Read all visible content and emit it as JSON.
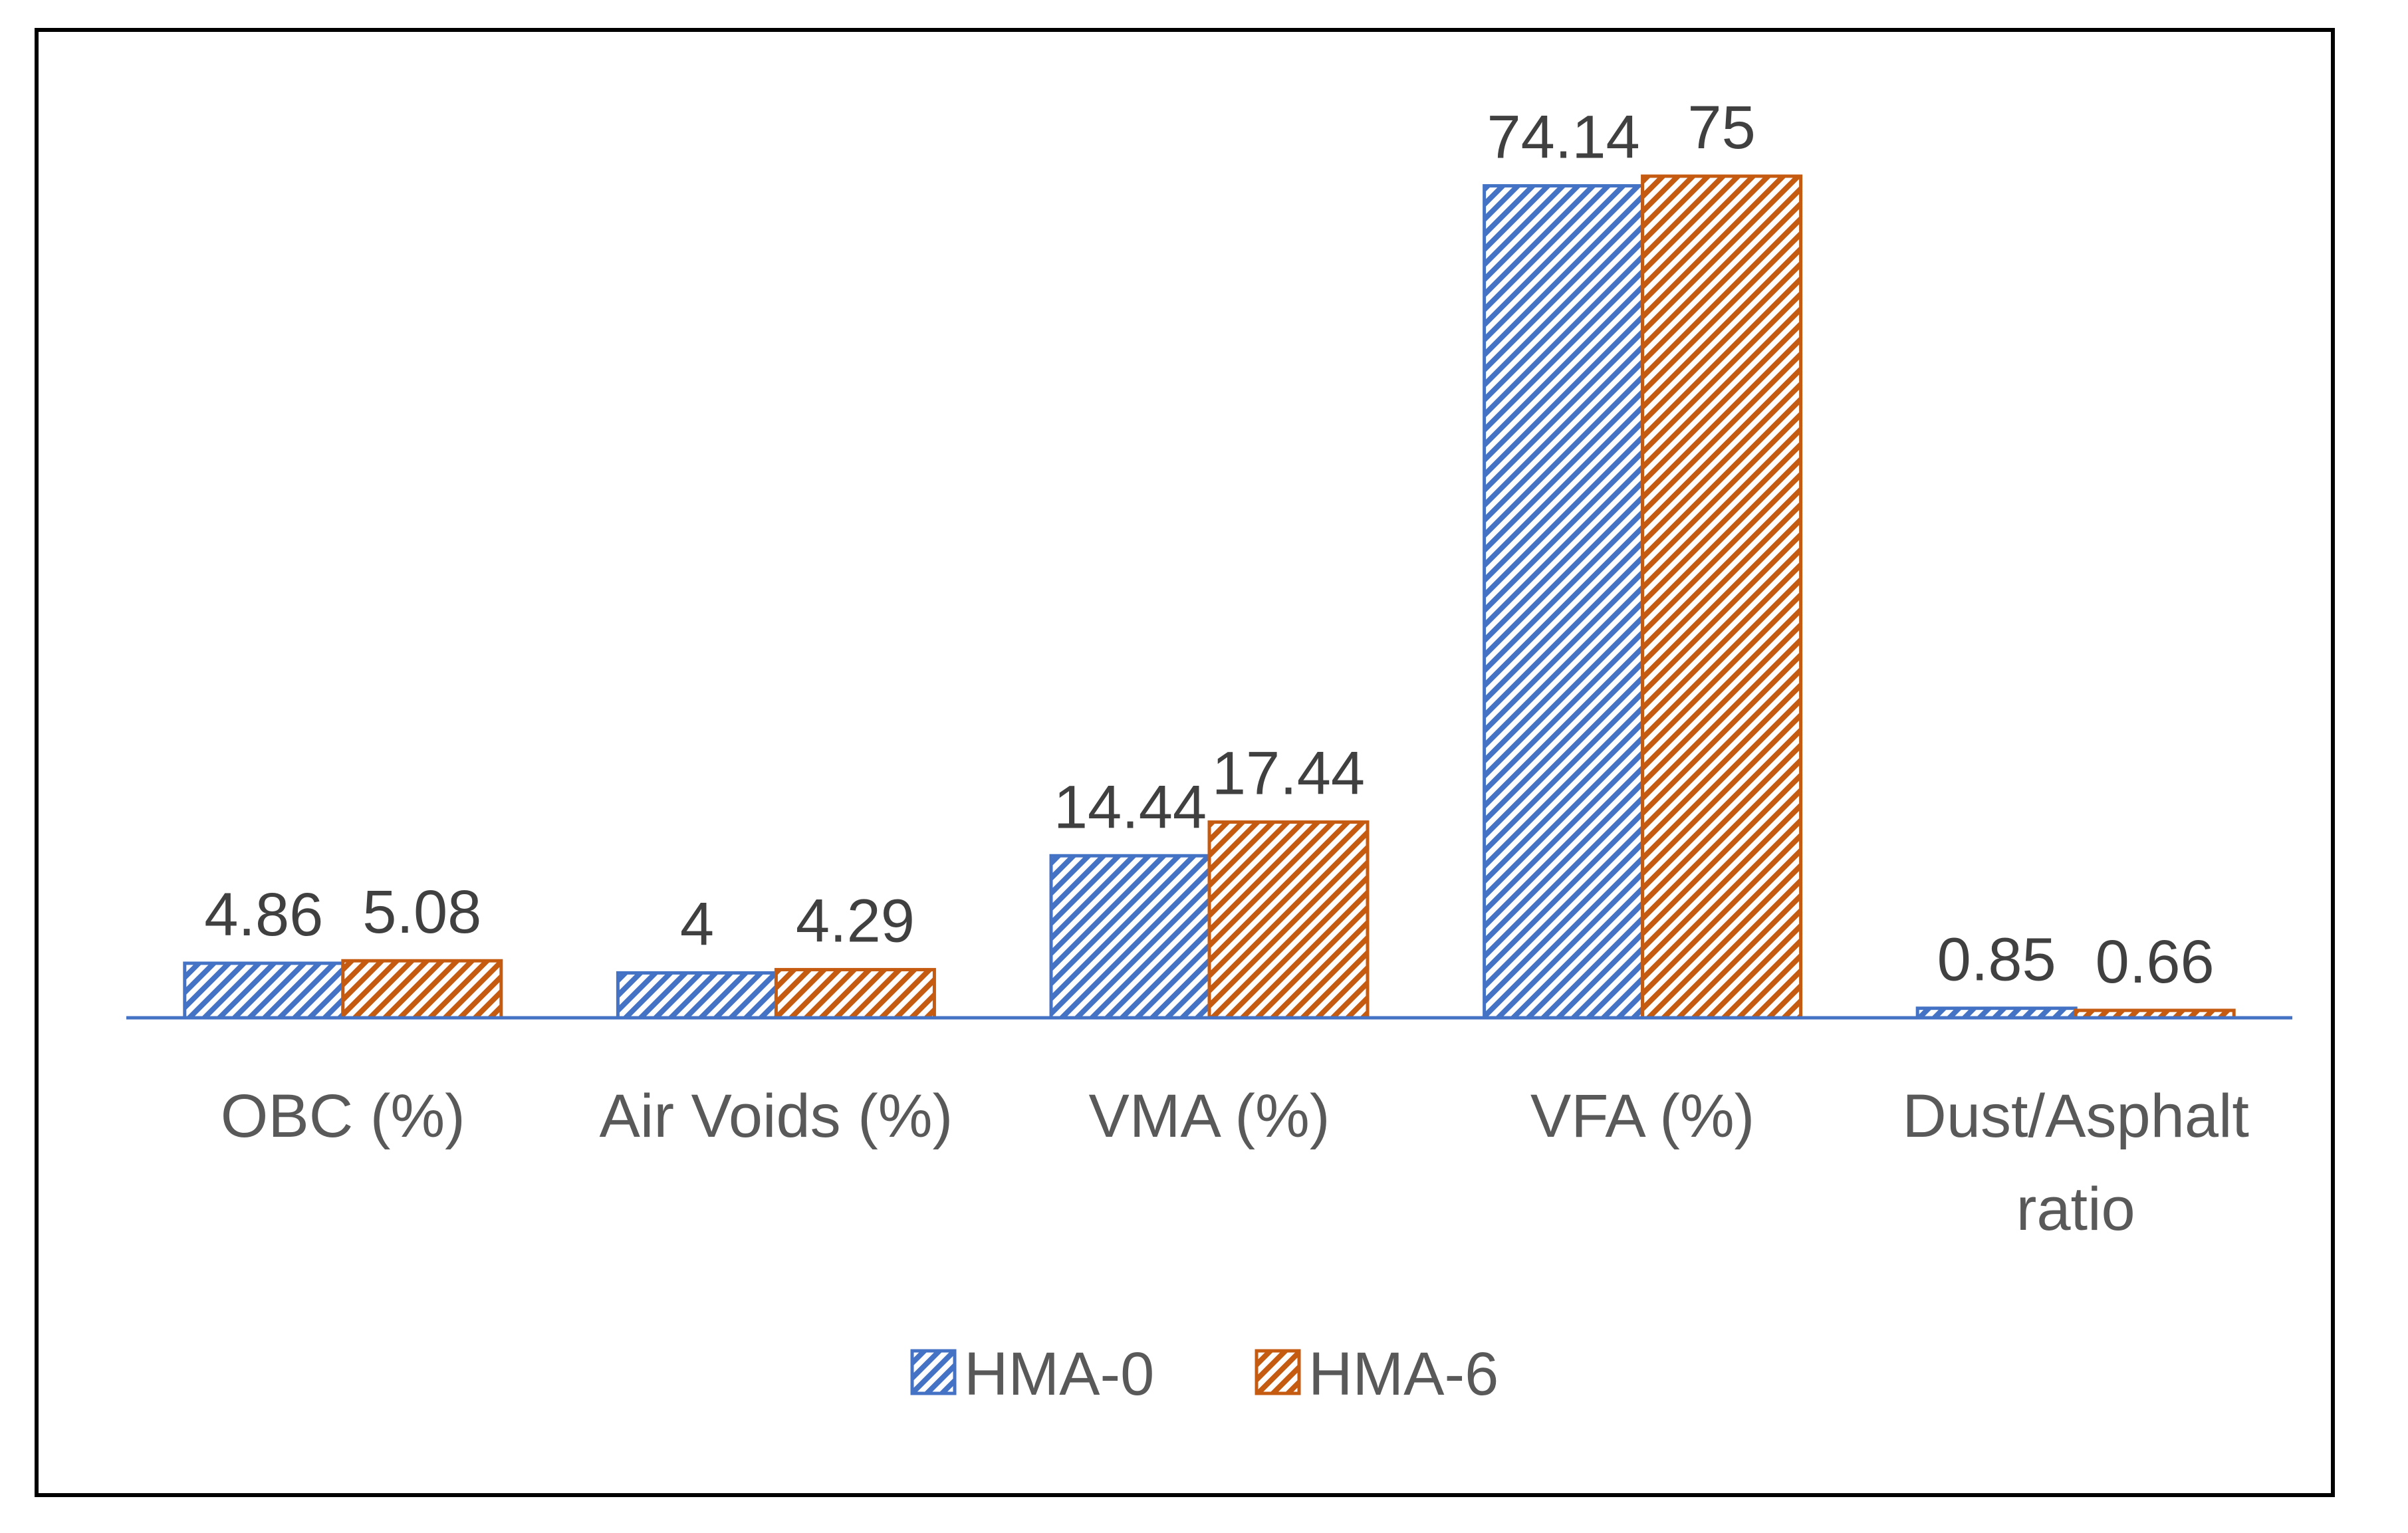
{
  "chart_data": {
    "type": "bar",
    "title": "",
    "xlabel": "",
    "ylabel": "",
    "categories": [
      [
        "OBC (%)"
      ],
      [
        "Air Voids (%)"
      ],
      [
        "VMA (%)"
      ],
      [
        "VFA (%)"
      ],
      [
        "Dust/Asphalt",
        "ratio"
      ]
    ],
    "series": [
      {
        "name": "HMA-0",
        "values": [
          4.86,
          4,
          14.44,
          74.14,
          0.85
        ],
        "labels": [
          "4.86",
          "4",
          "14.44",
          "74.14",
          "0.85"
        ],
        "color": "#4472C4",
        "pattern": "diagonal-hatch"
      },
      {
        "name": "HMA-6",
        "values": [
          5.08,
          4.29,
          17.44,
          75,
          0.66
        ],
        "labels": [
          "5.08",
          "4.29",
          "17.44",
          "75",
          "0.66"
        ],
        "color": "#C55A11",
        "pattern": "diagonal-hatch"
      }
    ],
    "ylim": [
      0,
      75
    ],
    "grid": false,
    "y_axis_visible": false,
    "data_labels": true,
    "legend_position": "bottom"
  }
}
